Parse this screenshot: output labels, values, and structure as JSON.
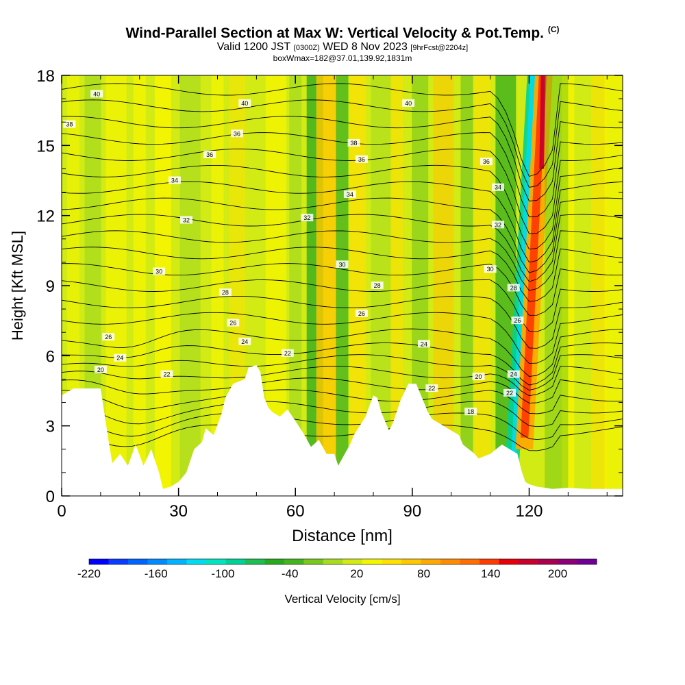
{
  "title": {
    "main": "Wind-Parallel Section at Max W: Vertical Velocity & Pot.Temp.",
    "copyright": "(C)"
  },
  "subtitle": {
    "valid_prefix": "Valid 1200 JST",
    "utc": "(0300Z)",
    "date": "WED 8 Nov 2023",
    "forecast": "[9hrFcst@2204z]",
    "box_info": "boxWmax=182@37.01,139.92,1831m"
  },
  "chart_data": {
    "type": "heatmap",
    "xlabel": "Distance [nm]",
    "ylabel": "Height [Kft MSL]",
    "xlim": [
      0,
      144
    ],
    "ylim": [
      0,
      18
    ],
    "x_ticks": [
      0,
      30,
      60,
      90,
      120
    ],
    "y_ticks": [
      0,
      3,
      6,
      9,
      12,
      15,
      18
    ],
    "terrain_kft": [
      [
        0,
        4.3
      ],
      [
        3,
        4.6
      ],
      [
        10,
        4.6
      ],
      [
        12,
        2.4
      ],
      [
        13,
        1.4
      ],
      [
        15,
        1.8
      ],
      [
        17,
        1.3
      ],
      [
        19,
        2.2
      ],
      [
        21,
        1.3
      ],
      [
        23,
        2.0
      ],
      [
        25,
        1.0
      ],
      [
        26,
        0.3
      ],
      [
        28,
        0.4
      ],
      [
        30,
        0.6
      ],
      [
        32,
        1.0
      ],
      [
        34,
        2.0
      ],
      [
        36,
        2.3
      ],
      [
        37,
        2.9
      ],
      [
        39,
        2.6
      ],
      [
        41,
        3.5
      ],
      [
        42,
        4.2
      ],
      [
        44,
        4.8
      ],
      [
        47,
        5.0
      ],
      [
        48,
        5.5
      ],
      [
        50,
        5.6
      ],
      [
        51,
        5.3
      ],
      [
        52,
        4.2
      ],
      [
        53,
        3.8
      ],
      [
        54,
        3.6
      ],
      [
        56,
        3.4
      ],
      [
        58,
        3.7
      ],
      [
        60,
        3.2
      ],
      [
        62,
        2.7
      ],
      [
        64,
        2.1
      ],
      [
        66,
        2.4
      ],
      [
        68,
        1.8
      ],
      [
        70,
        1.8
      ],
      [
        71,
        1.3
      ],
      [
        72,
        1.6
      ],
      [
        74,
        2.2
      ],
      [
        75,
        2.6
      ],
      [
        78,
        3.4
      ],
      [
        80,
        4.3
      ],
      [
        81,
        4.2
      ],
      [
        82,
        3.6
      ],
      [
        84,
        2.8
      ],
      [
        85,
        3.1
      ],
      [
        87,
        4.1
      ],
      [
        89,
        4.8
      ],
      [
        91,
        4.8
      ],
      [
        93,
        4.0
      ],
      [
        94,
        3.6
      ],
      [
        95,
        3.3
      ],
      [
        97,
        3.1
      ],
      [
        100,
        2.8
      ],
      [
        102,
        2.6
      ],
      [
        103,
        2.2
      ],
      [
        106,
        1.8
      ],
      [
        107,
        1.6
      ],
      [
        110,
        1.8
      ],
      [
        113,
        2.2
      ],
      [
        115,
        2.0
      ],
      [
        117,
        1.8
      ],
      [
        118,
        1.1
      ],
      [
        119,
        0.6
      ],
      [
        120,
        0.5
      ],
      [
        122,
        0.4
      ],
      [
        126,
        0.3
      ],
      [
        130,
        0.35
      ],
      [
        135,
        0.3
      ],
      [
        144,
        0.3
      ]
    ],
    "theta_contour_labels": [
      "40",
      "38",
      "36",
      "34",
      "32",
      "30",
      "28",
      "26",
      "24",
      "22",
      "20",
      "18"
    ],
    "colorbar": {
      "label": "Vertical Velocity [cm/s]",
      "tick_labels": [
        "-220",
        "-160",
        "-100",
        "-40",
        "20",
        "80",
        "140",
        "200"
      ],
      "colors": [
        "#0000ff",
        "#0a3cff",
        "#0064ff",
        "#008cff",
        "#00b4ff",
        "#00dcf0",
        "#00e6c0",
        "#00d296",
        "#1ebe50",
        "#28aa1e",
        "#46b41e",
        "#78c81e",
        "#aadc1e",
        "#d2eb14",
        "#f5f500",
        "#ffe100",
        "#ffc800",
        "#ffaa00",
        "#ff8c00",
        "#ff6e00",
        "#ff3c00",
        "#e6000a",
        "#c8002d",
        "#aa0050",
        "#8c0078",
        "#6e0096"
      ]
    },
    "plot_background_color": "#d2eb14",
    "terrain_color": "#ffffff"
  }
}
